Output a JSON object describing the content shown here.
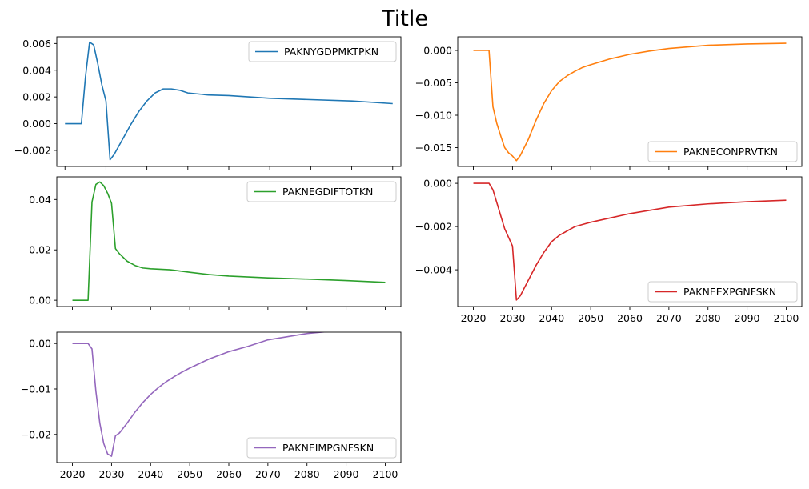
{
  "title": "Title",
  "chart_data": [
    {
      "type": "line",
      "series_name": "PAKNYGDPMKTPKN",
      "color": "#1f77b4",
      "legend": "top-right",
      "xlim": [
        2018,
        2102
      ],
      "ylim": [
        -0.0032,
        0.0065
      ],
      "yticks": [
        -0.002,
        0.0,
        0.002,
        0.004,
        0.006
      ],
      "ytick_labels": [
        "−0.002",
        "0.000",
        "0.002",
        "0.004",
        "0.006"
      ],
      "xticks": [
        2020,
        2030,
        2040,
        2050,
        2060,
        2070,
        2080,
        2090,
        2100
      ],
      "xtick_labels": [],
      "x": [
        2020,
        2024,
        2025,
        2026,
        2027,
        2028,
        2029,
        2030,
        2031,
        2032,
        2034,
        2036,
        2038,
        2040,
        2042,
        2044,
        2046,
        2048,
        2050,
        2055,
        2060,
        2070,
        2080,
        2090,
        2100
      ],
      "y": [
        0.0,
        0.0,
        0.0035,
        0.0061,
        0.0059,
        0.0045,
        0.0029,
        0.0017,
        -0.0027,
        -0.0023,
        -0.0012,
        -0.0001,
        0.0009,
        0.0017,
        0.0023,
        0.0026,
        0.0026,
        0.0025,
        0.0023,
        0.00215,
        0.0021,
        0.0019,
        0.0018,
        0.0017,
        0.0015
      ]
    },
    {
      "type": "line",
      "series_name": "PAKNECONPRVTKN",
      "color": "#ff7f0e",
      "legend": "bottom-right",
      "xlim": [
        2016,
        2104
      ],
      "ylim": [
        -0.0179,
        0.0021
      ],
      "yticks": [
        -0.015,
        -0.01,
        -0.005,
        0.0
      ],
      "ytick_labels": [
        "−0.015",
        "−0.010",
        "−0.005",
        "0.000"
      ],
      "xticks": [
        2020,
        2030,
        2040,
        2050,
        2060,
        2070,
        2080,
        2090,
        2100
      ],
      "xtick_labels": [],
      "x": [
        2020,
        2024,
        2025,
        2026,
        2027,
        2028,
        2029,
        2030,
        2031,
        2032,
        2034,
        2036,
        2038,
        2040,
        2042,
        2044,
        2046,
        2048,
        2050,
        2055,
        2060,
        2065,
        2070,
        2080,
        2090,
        2100
      ],
      "y": [
        0.0,
        0.0,
        -0.0087,
        -0.0113,
        -0.0132,
        -0.015,
        -0.0158,
        -0.0163,
        -0.017,
        -0.0162,
        -0.0138,
        -0.0108,
        -0.0082,
        -0.0062,
        -0.0048,
        -0.0039,
        -0.0032,
        -0.0026,
        -0.0022,
        -0.0013,
        -0.0006,
        -0.0001,
        0.0003,
        0.0008,
        0.001,
        0.0011
      ]
    },
    {
      "type": "line",
      "series_name": "PAKNEGDIFTOTKN",
      "color": "#2ca02c",
      "legend": "top-right",
      "xlim": [
        2016,
        2104
      ],
      "ylim": [
        -0.0025,
        0.049
      ],
      "yticks": [
        0.0,
        0.02,
        0.04
      ],
      "ytick_labels": [
        "0.00",
        "0.02",
        "0.04"
      ],
      "xticks": [
        2020,
        2030,
        2040,
        2050,
        2060,
        2070,
        2080,
        2090,
        2100
      ],
      "xtick_labels": [],
      "x": [
        2020,
        2024,
        2025,
        2026,
        2027,
        2028,
        2029,
        2030,
        2031,
        2032,
        2034,
        2036,
        2038,
        2040,
        2045,
        2050,
        2055,
        2060,
        2070,
        2080,
        2090,
        2100
      ],
      "y": [
        0.0,
        0.0,
        0.039,
        0.046,
        0.047,
        0.0455,
        0.0425,
        0.0385,
        0.0205,
        0.0185,
        0.0155,
        0.0138,
        0.0128,
        0.0125,
        0.0121,
        0.0111,
        0.0102,
        0.0096,
        0.0089,
        0.0084,
        0.0078,
        0.0071
      ]
    },
    {
      "type": "line",
      "series_name": "PAKNEEXPGNFSKN",
      "color": "#d62728",
      "legend": "bottom-right",
      "xlim": [
        2016,
        2104
      ],
      "ylim": [
        -0.0057,
        0.0003
      ],
      "yticks": [
        -0.004,
        -0.002,
        0.0
      ],
      "ytick_labels": [
        "−0.004",
        "−0.002",
        "0.000"
      ],
      "xticks": [
        2020,
        2030,
        2040,
        2050,
        2060,
        2070,
        2080,
        2090,
        2100
      ],
      "xtick_labels": [
        "2020",
        "2030",
        "2040",
        "2050",
        "2060",
        "2070",
        "2080",
        "2090",
        "2100"
      ],
      "x": [
        2020,
        2024,
        2025,
        2026,
        2027,
        2028,
        2029,
        2030,
        2031,
        2032,
        2034,
        2036,
        2038,
        2040,
        2042,
        2044,
        2046,
        2048,
        2050,
        2055,
        2060,
        2070,
        2080,
        2090,
        2100
      ],
      "y": [
        0.0,
        0.0,
        -0.0003,
        -0.0009,
        -0.0015,
        -0.0021,
        -0.0025,
        -0.0029,
        -0.0054,
        -0.0052,
        -0.0045,
        -0.0038,
        -0.0032,
        -0.0027,
        -0.0024,
        -0.0022,
        -0.002,
        -0.0019,
        -0.0018,
        -0.0016,
        -0.0014,
        -0.0011,
        -0.00095,
        -0.00085,
        -0.00078
      ]
    },
    {
      "type": "line",
      "series_name": "PAKNEIMPGNFSKN",
      "color": "#9467bd",
      "legend": "bottom-right",
      "xlim": [
        2016,
        2104
      ],
      "ylim": [
        -0.0262,
        0.0025
      ],
      "yticks": [
        -0.02,
        -0.01,
        0.0
      ],
      "ytick_labels": [
        "−0.02",
        "−0.01",
        "0.00"
      ],
      "xticks": [
        2020,
        2030,
        2040,
        2050,
        2060,
        2070,
        2080,
        2090,
        2100
      ],
      "xtick_labels": [
        "2020",
        "2030",
        "2040",
        "2050",
        "2060",
        "2070",
        "2080",
        "2090",
        "2100"
      ],
      "x": [
        2020,
        2024,
        2025,
        2026,
        2027,
        2028,
        2029,
        2030,
        2031,
        2032,
        2034,
        2036,
        2038,
        2040,
        2042,
        2044,
        2046,
        2048,
        2050,
        2055,
        2060,
        2065,
        2070,
        2080,
        2090,
        2100
      ],
      "y": [
        0.0,
        0.0,
        -0.0012,
        -0.0105,
        -0.0175,
        -0.022,
        -0.0243,
        -0.0248,
        -0.0203,
        -0.0197,
        -0.0175,
        -0.0151,
        -0.013,
        -0.0112,
        -0.0097,
        -0.0084,
        -0.0073,
        -0.0063,
        -0.0054,
        -0.0034,
        -0.0018,
        -0.0006,
        0.0008,
        0.0022,
        0.003,
        0.0033
      ]
    }
  ]
}
